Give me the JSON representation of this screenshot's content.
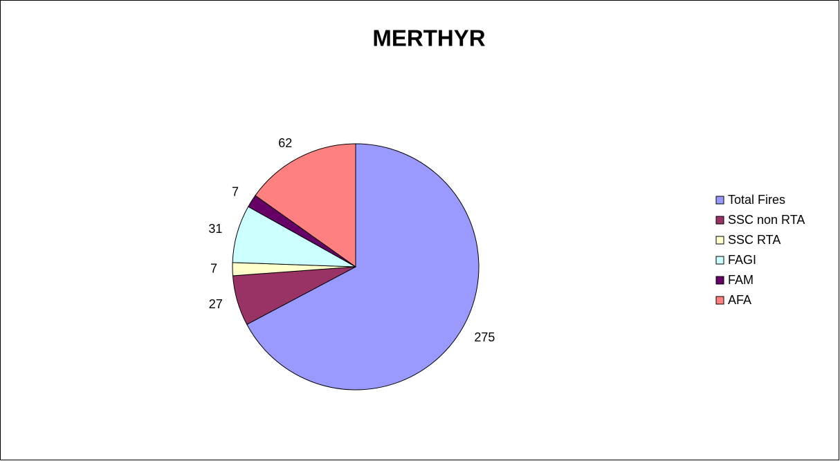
{
  "chart_data": {
    "type": "pie",
    "title": "MERTHYR",
    "categories": [
      "Total Fires",
      "SSC non RTA",
      "SSC RTA",
      "FAGI",
      "FAM",
      "AFA"
    ],
    "values": [
      275,
      27,
      7,
      31,
      7,
      62
    ],
    "colors": [
      "#9999ff",
      "#993366",
      "#ffffcc",
      "#ccffff",
      "#660066",
      "#ff8080"
    ]
  }
}
